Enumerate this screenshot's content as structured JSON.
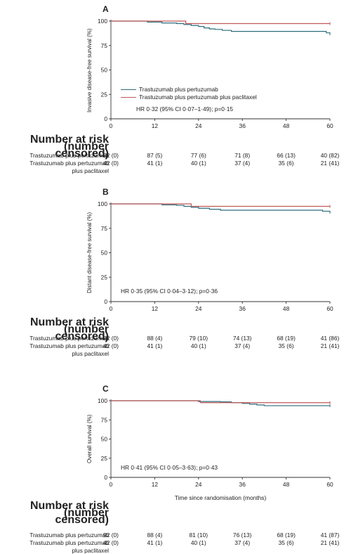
{
  "colors": {
    "series1": "#2d6e7e",
    "series2": "#c05a5a",
    "axis": "#333333"
  },
  "chart_data": [
    {
      "type": "line",
      "panel": "A",
      "ylabel": "Invasive disease-free survival (%)",
      "xlabel": "",
      "xlim": [
        0,
        60
      ],
      "ylim": [
        0,
        100
      ],
      "xticks": [
        0,
        12,
        24,
        36,
        48,
        60
      ],
      "yticks": [
        0,
        25,
        50,
        75,
        100
      ],
      "legend": [
        "Trastuzumab plus pertuzumab",
        "Trastuzumab plus pertuzumab plus paclitaxel"
      ],
      "annotation": "HR 0·32 (95% CI 0·07–1·49); p=0·15",
      "series": [
        {
          "name": "Trastuzumab plus pertuzumab",
          "color": "#2d6e7e",
          "x": [
            0,
            6.5,
            10,
            14,
            18,
            20,
            22,
            24,
            25.5,
            27,
            28.5,
            30.5,
            33,
            36,
            48,
            59,
            60
          ],
          "y": [
            100,
            100,
            99,
            98,
            97.5,
            96.5,
            95.5,
            94.5,
            93,
            92,
            91.5,
            90.5,
            89.5,
            89.5,
            89.5,
            88,
            87
          ]
        },
        {
          "name": "Trastuzumab plus pertuzumab plus paclitaxel",
          "color": "#c05a5a",
          "x": [
            0,
            20,
            20.5,
            60
          ],
          "y": [
            100,
            100,
            97.5,
            97.5
          ]
        }
      ],
      "risk_table": {
        "title": "Number at risk (number censored)",
        "rows": [
          {
            "label": "Trastuzumab plus pertuzumab",
            "values": [
              "92 (0)",
              "87 (5)",
              "77 (6)",
              "71 (8)",
              "66 (13)",
              "40 (82)"
            ]
          },
          {
            "label": "Trastuzumab plus pertuzumab",
            "label2": "plus paclitaxel",
            "values": [
              "42 (0)",
              "41 (1)",
              "40 (1)",
              "37 (4)",
              "35 (6)",
              "21 (41)"
            ]
          }
        ]
      }
    },
    {
      "type": "line",
      "panel": "B",
      "ylabel": "Distant disease-free survival (%)",
      "xlabel": "",
      "xlim": [
        0,
        60
      ],
      "ylim": [
        0,
        100
      ],
      "xticks": [
        0,
        12,
        24,
        36,
        48,
        60
      ],
      "yticks": [
        0,
        25,
        50,
        75,
        100
      ],
      "annotation": "HR 0·35 (95% CI 0·04–3·12); p=0·36",
      "series": [
        {
          "name": "Trastuzumab plus pertuzumab",
          "color": "#2d6e7e",
          "x": [
            0,
            12,
            14,
            18,
            20,
            22,
            24,
            27,
            30,
            36,
            48,
            58,
            60
          ],
          "y": [
            100,
            100,
            99,
            98.5,
            97.5,
            96.5,
            95.5,
            94.5,
            93.5,
            93.5,
            93.5,
            92.5,
            91.5
          ]
        },
        {
          "name": "Trastuzumab plus pertuzumab plus paclitaxel",
          "color": "#c05a5a",
          "x": [
            0,
            20,
            22,
            60
          ],
          "y": [
            100,
            100,
            97.5,
            97.5
          ]
        }
      ],
      "risk_table": {
        "title": "Number at risk (number censored)",
        "rows": [
          {
            "label": "Trastuzumab plus pertuzumab",
            "values": [
              "92 (0)",
              "88 (4)",
              "79 (10)",
              "74 (13)",
              "68 (19)",
              "41 (86)"
            ]
          },
          {
            "label": "Trastuzumab plus pertuzumab",
            "label2": "plus paclitaxel",
            "values": [
              "42 (0)",
              "41 (1)",
              "40 (1)",
              "37 (4)",
              "35 (6)",
              "21 (41)"
            ]
          }
        ]
      }
    },
    {
      "type": "line",
      "panel": "C",
      "ylabel": "Overall survival (%)",
      "xlabel": "Time since randomisation (months)",
      "xlim": [
        0,
        60
      ],
      "ylim": [
        0,
        100
      ],
      "xticks": [
        0,
        12,
        24,
        36,
        48,
        60
      ],
      "yticks": [
        0,
        25,
        50,
        75,
        100
      ],
      "annotation": "HR 0·41 (95% CI 0·05–3·63); p=0·43",
      "series": [
        {
          "name": "Trastuzumab plus pertuzumab",
          "color": "#2d6e7e",
          "x": [
            0,
            23,
            24,
            30,
            33,
            36,
            38,
            40,
            42,
            48,
            60
          ],
          "y": [
            100,
            100,
            99,
            98.5,
            97.5,
            96.5,
            95.5,
            94.5,
            93.5,
            93.5,
            93.5
          ]
        },
        {
          "name": "Trastuzumab plus pertuzumab plus paclitaxel",
          "color": "#c05a5a",
          "x": [
            0,
            24,
            24.5,
            60
          ],
          "y": [
            100,
            100,
            97.5,
            97.5
          ]
        }
      ],
      "risk_table": {
        "title": "Number at risk (number censored)",
        "rows": [
          {
            "label": "Trastuzumab plus pertuzumab",
            "values": [
              "92 (0)",
              "88 (4)",
              "81 (10)",
              "76 (13)",
              "68 (19)",
              "41 (87)"
            ]
          },
          {
            "label": "Trastuzumab plus pertuzumab",
            "label2": "plus paclitaxel",
            "values": [
              "42 (0)",
              "41 (1)",
              "40 (1)",
              "37 (4)",
              "35 (6)",
              "21 (41)"
            ]
          }
        ]
      }
    }
  ]
}
